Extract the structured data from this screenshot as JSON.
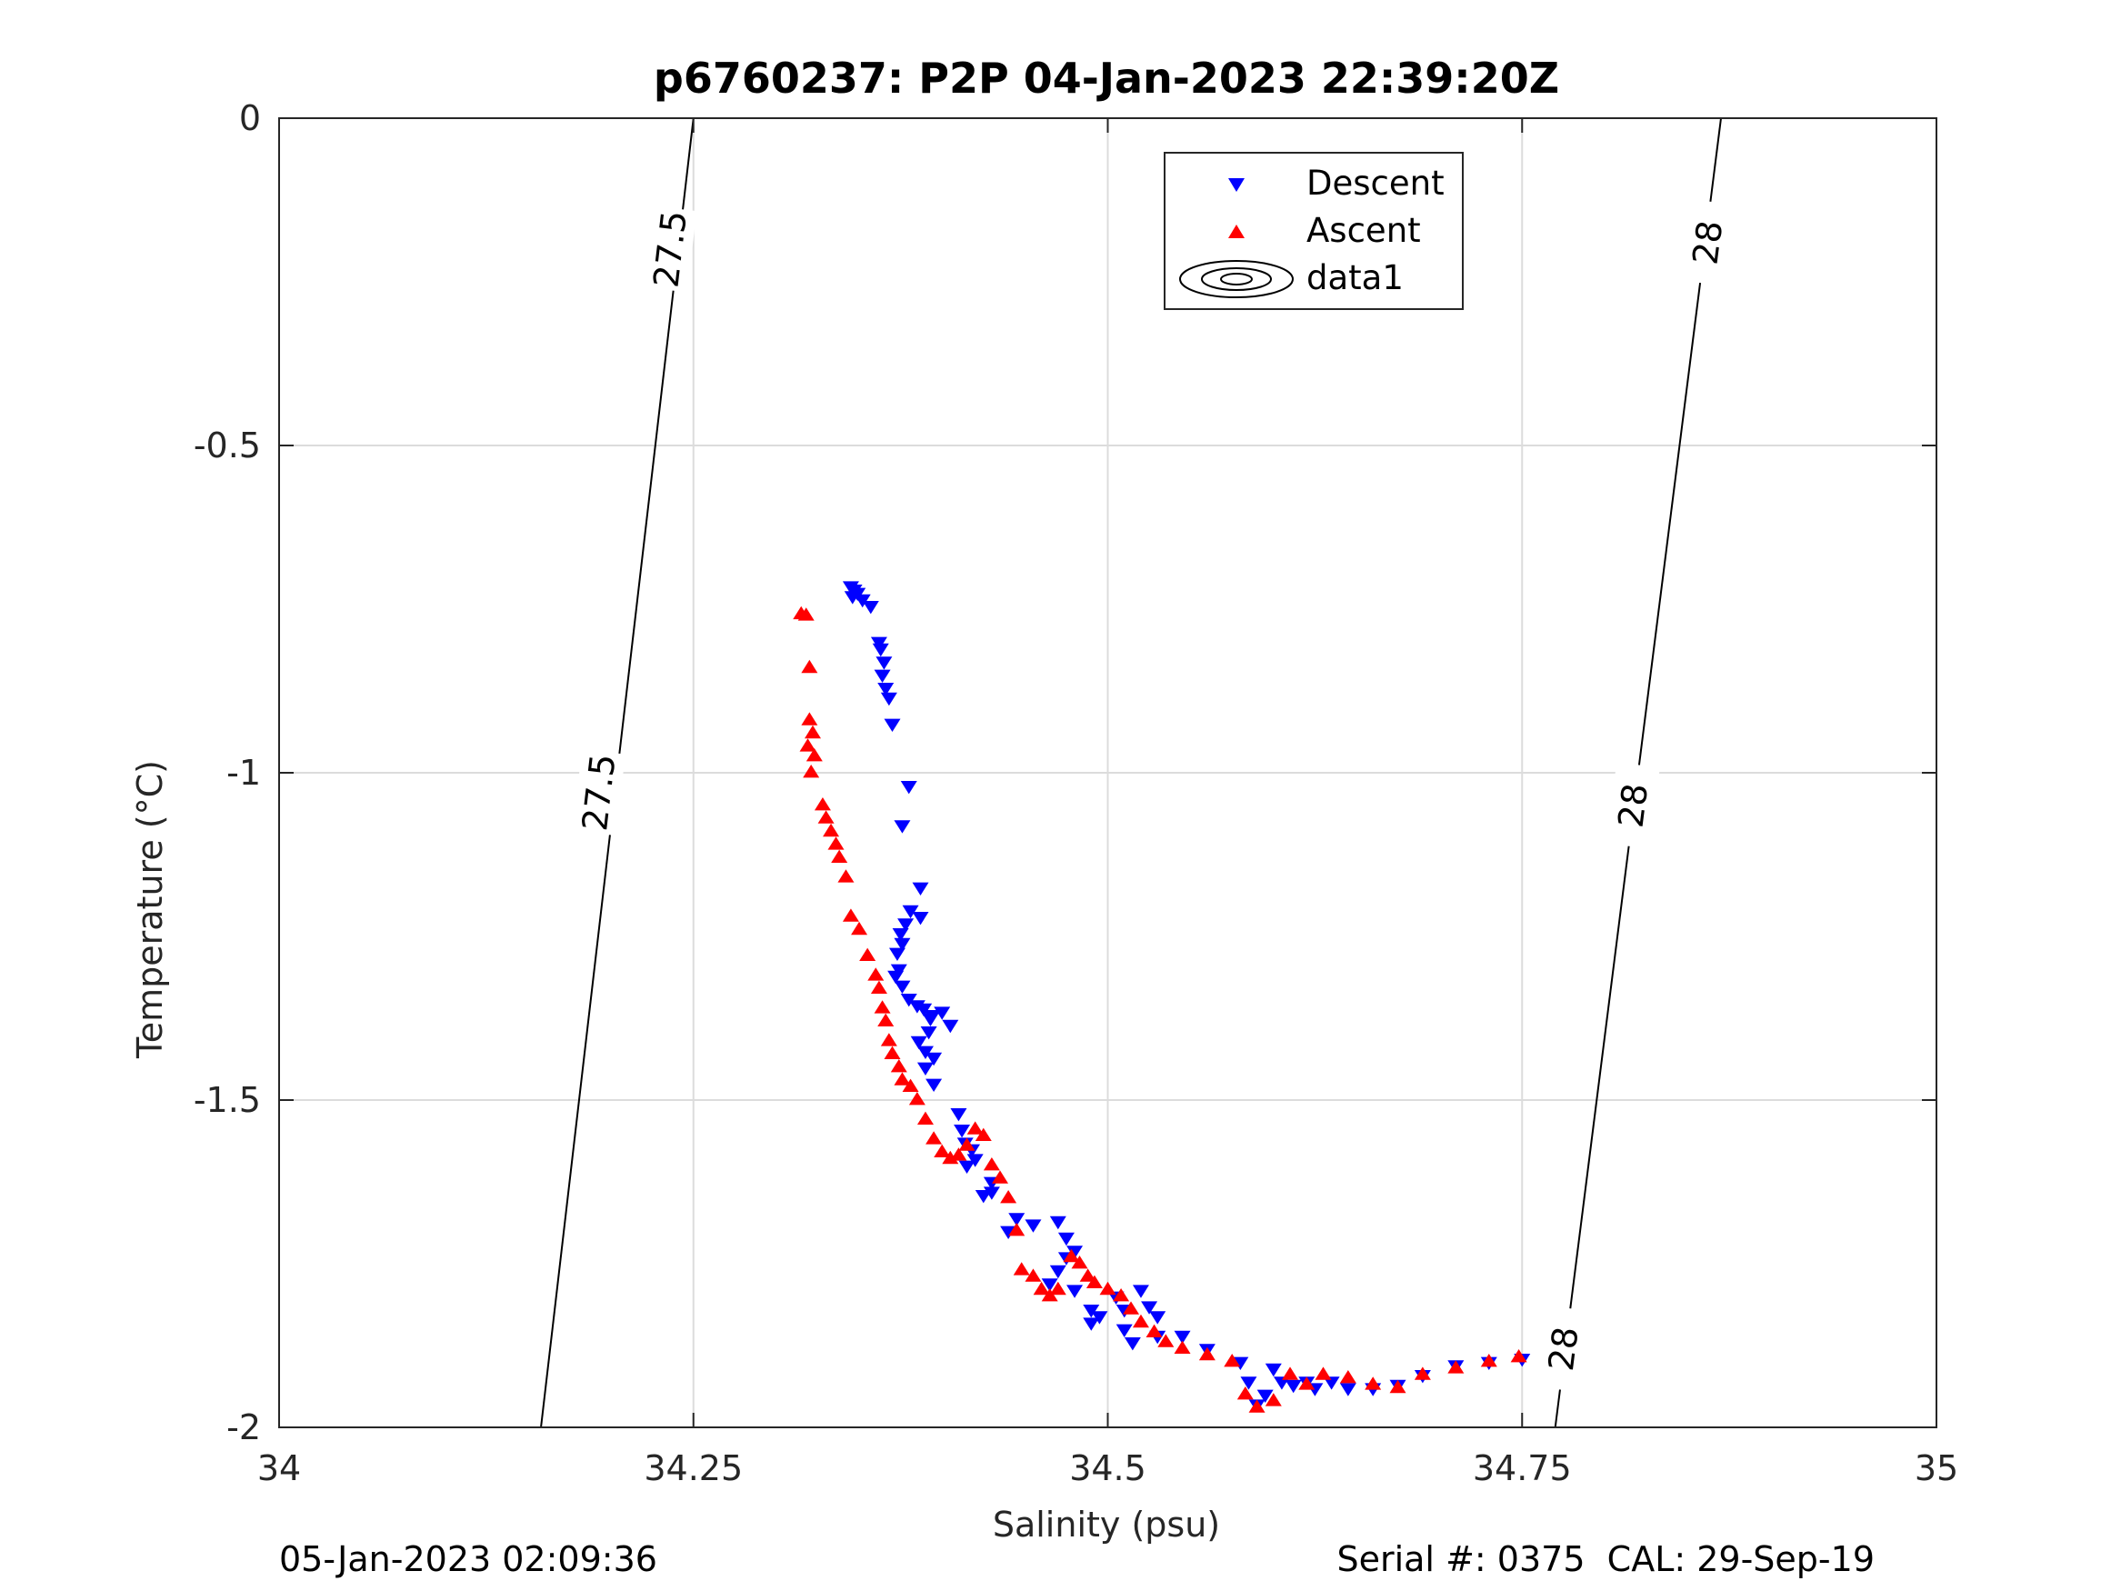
{
  "chart_data": {
    "type": "scatter",
    "title": "p6760237: P2P 04-Jan-2023 22:39:20Z",
    "xlabel": "Salinity (psu)",
    "ylabel": "Temperature (°C)",
    "xlim": [
      34,
      35
    ],
    "ylim": [
      -2,
      0
    ],
    "xticks": [
      34,
      34.25,
      34.5,
      34.75,
      35
    ],
    "xtick_labels": [
      "34",
      "34.25",
      "34.5",
      "34.75",
      "35"
    ],
    "yticks": [
      0,
      -0.5,
      -1,
      -1.5,
      -2
    ],
    "ytick_labels": [
      "0",
      "-0.5",
      "-1",
      "-1.5",
      "-2"
    ],
    "grid": true,
    "legend": {
      "placement": "top-center",
      "entries": [
        "Descent",
        "Ascent",
        "data1"
      ]
    },
    "series": [
      {
        "name": "Descent",
        "marker": "triangle-down",
        "color": "#0000ff",
        "points": [
          [
            34.345,
            -0.715
          ],
          [
            34.347,
            -0.72
          ],
          [
            34.349,
            -0.725
          ],
          [
            34.346,
            -0.73
          ],
          [
            34.352,
            -0.735
          ],
          [
            34.357,
            -0.745
          ],
          [
            34.362,
            -0.8
          ],
          [
            34.363,
            -0.81
          ],
          [
            34.365,
            -0.83
          ],
          [
            34.364,
            -0.85
          ],
          [
            34.366,
            -0.87
          ],
          [
            34.368,
            -0.885
          ],
          [
            34.37,
            -0.925
          ],
          [
            34.38,
            -1.02
          ],
          [
            34.376,
            -1.08
          ],
          [
            34.387,
            -1.175
          ],
          [
            34.381,
            -1.21
          ],
          [
            34.387,
            -1.22
          ],
          [
            34.378,
            -1.23
          ],
          [
            34.375,
            -1.245
          ],
          [
            34.376,
            -1.26
          ],
          [
            34.373,
            -1.275
          ],
          [
            34.374,
            -1.3
          ],
          [
            34.372,
            -1.31
          ],
          [
            34.376,
            -1.325
          ],
          [
            34.38,
            -1.345
          ],
          [
            34.385,
            -1.355
          ],
          [
            34.389,
            -1.36
          ],
          [
            34.394,
            -1.37
          ],
          [
            34.393,
            -1.375
          ],
          [
            34.4,
            -1.365
          ],
          [
            34.405,
            -1.385
          ],
          [
            34.392,
            -1.395
          ],
          [
            34.386,
            -1.41
          ],
          [
            34.39,
            -1.425
          ],
          [
            34.395,
            -1.435
          ],
          [
            34.39,
            -1.45
          ],
          [
            34.395,
            -1.475
          ],
          [
            34.41,
            -1.52
          ],
          [
            34.412,
            -1.545
          ],
          [
            34.414,
            -1.565
          ],
          [
            34.418,
            -1.575
          ],
          [
            34.42,
            -1.59
          ],
          [
            34.415,
            -1.6
          ],
          [
            34.43,
            -1.625
          ],
          [
            34.43,
            -1.64
          ],
          [
            34.425,
            -1.645
          ],
          [
            34.445,
            -1.68
          ],
          [
            34.44,
            -1.7
          ],
          [
            34.455,
            -1.69
          ],
          [
            34.47,
            -1.685
          ],
          [
            34.475,
            -1.71
          ],
          [
            34.48,
            -1.73
          ],
          [
            34.475,
            -1.74
          ],
          [
            34.47,
            -1.76
          ],
          [
            34.465,
            -1.78
          ],
          [
            34.48,
            -1.79
          ],
          [
            34.49,
            -1.82
          ],
          [
            34.49,
            -1.84
          ],
          [
            34.505,
            -1.8
          ],
          [
            34.51,
            -1.82
          ],
          [
            34.52,
            -1.79
          ],
          [
            34.525,
            -1.815
          ],
          [
            34.53,
            -1.83
          ],
          [
            34.495,
            -1.83
          ],
          [
            34.51,
            -1.85
          ],
          [
            34.515,
            -1.87
          ],
          [
            34.53,
            -1.86
          ],
          [
            34.545,
            -1.86
          ],
          [
            34.56,
            -1.88
          ],
          [
            34.58,
            -1.9
          ],
          [
            34.585,
            -1.93
          ],
          [
            34.59,
            -1.965
          ],
          [
            34.595,
            -1.95
          ],
          [
            34.6,
            -1.91
          ],
          [
            34.605,
            -1.93
          ],
          [
            34.612,
            -1.935
          ],
          [
            34.62,
            -1.93
          ],
          [
            34.625,
            -1.94
          ],
          [
            34.635,
            -1.93
          ],
          [
            34.645,
            -1.94
          ],
          [
            34.66,
            -1.94
          ],
          [
            34.675,
            -1.935
          ],
          [
            34.69,
            -1.92
          ],
          [
            34.71,
            -1.905
          ],
          [
            34.73,
            -1.9
          ],
          [
            34.75,
            -1.895
          ]
        ]
      },
      {
        "name": "Ascent",
        "marker": "triangle-up",
        "color": "#ff0000",
        "points": [
          [
            34.315,
            -0.758
          ],
          [
            34.318,
            -0.76
          ],
          [
            34.32,
            -0.84
          ],
          [
            34.32,
            -0.92
          ],
          [
            34.322,
            -0.94
          ],
          [
            34.319,
            -0.96
          ],
          [
            34.323,
            -0.975
          ],
          [
            34.321,
            -1.0
          ],
          [
            34.328,
            -1.05
          ],
          [
            34.33,
            -1.07
          ],
          [
            34.333,
            -1.09
          ],
          [
            34.336,
            -1.11
          ],
          [
            34.338,
            -1.13
          ],
          [
            34.342,
            -1.16
          ],
          [
            34.345,
            -1.22
          ],
          [
            34.35,
            -1.24
          ],
          [
            34.355,
            -1.28
          ],
          [
            34.36,
            -1.31
          ],
          [
            34.362,
            -1.33
          ],
          [
            34.364,
            -1.36
          ],
          [
            34.366,
            -1.38
          ],
          [
            34.368,
            -1.41
          ],
          [
            34.37,
            -1.43
          ],
          [
            34.374,
            -1.45
          ],
          [
            34.376,
            -1.47
          ],
          [
            34.381,
            -1.48
          ],
          [
            34.385,
            -1.5
          ],
          [
            34.39,
            -1.53
          ],
          [
            34.395,
            -1.56
          ],
          [
            34.4,
            -1.58
          ],
          [
            34.405,
            -1.59
          ],
          [
            34.41,
            -1.585
          ],
          [
            34.415,
            -1.57
          ],
          [
            34.42,
            -1.545
          ],
          [
            34.425,
            -1.555
          ],
          [
            34.43,
            -1.6
          ],
          [
            34.435,
            -1.62
          ],
          [
            34.44,
            -1.65
          ],
          [
            34.445,
            -1.7
          ],
          [
            34.448,
            -1.76
          ],
          [
            34.455,
            -1.77
          ],
          [
            34.46,
            -1.79
          ],
          [
            34.465,
            -1.8
          ],
          [
            34.47,
            -1.79
          ],
          [
            34.478,
            -1.74
          ],
          [
            34.483,
            -1.75
          ],
          [
            34.488,
            -1.77
          ],
          [
            34.492,
            -1.78
          ],
          [
            34.5,
            -1.79
          ],
          [
            34.508,
            -1.8
          ],
          [
            34.514,
            -1.82
          ],
          [
            34.52,
            -1.84
          ],
          [
            34.528,
            -1.855
          ],
          [
            34.535,
            -1.87
          ],
          [
            34.545,
            -1.88
          ],
          [
            34.56,
            -1.89
          ],
          [
            34.575,
            -1.9
          ],
          [
            34.583,
            -1.95
          ],
          [
            34.59,
            -1.97
          ],
          [
            34.6,
            -1.96
          ],
          [
            34.61,
            -1.92
          ],
          [
            34.62,
            -1.935
          ],
          [
            34.63,
            -1.92
          ],
          [
            34.645,
            -1.925
          ],
          [
            34.66,
            -1.935
          ],
          [
            34.675,
            -1.94
          ],
          [
            34.69,
            -1.92
          ],
          [
            34.71,
            -1.91
          ],
          [
            34.73,
            -1.9
          ],
          [
            34.748,
            -1.893
          ]
        ]
      }
    ],
    "contours": [
      {
        "level": "27.5",
        "label": "27.5",
        "line": [
          [
            34.158,
            -2.0
          ],
          [
            34.25,
            0.0
          ]
        ],
        "label_positions": [
          [
            34.236,
            -0.2
          ],
          [
            34.193,
            -1.03
          ]
        ]
      },
      {
        "level": "28",
        "label": "28",
        "line": [
          [
            34.77,
            -2.0
          ],
          [
            34.87,
            0.0
          ]
        ],
        "label_positions": [
          [
            34.862,
            -0.19
          ],
          [
            34.817,
            -1.05
          ],
          [
            34.775,
            -1.88
          ]
        ]
      }
    ],
    "footer_left": "05-Jan-2023 02:09:36",
    "footer_right": "Serial #: 0375  CAL: 29-Sep-19",
    "colors": {
      "descent": "#0000ff",
      "ascent": "#ff0000",
      "grid": "#dcdcdc",
      "axis": "#262626"
    }
  }
}
